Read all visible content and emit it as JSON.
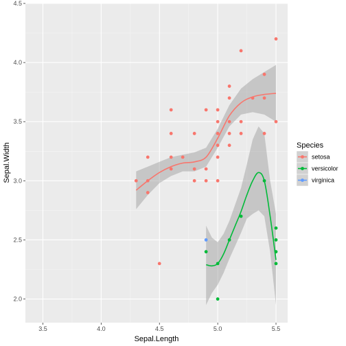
{
  "chart_data": {
    "type": "scatter",
    "xlabel": "Sepal.Length",
    "ylabel": "Sepal.Width",
    "xlim": [
      3.35,
      5.6
    ],
    "ylim": [
      1.8,
      4.5
    ],
    "x_ticks": [
      3.5,
      4.0,
      4.5,
      5.0,
      5.5
    ],
    "x_tick_labels": [
      "3.5",
      "4.0",
      "4.5",
      "5.0",
      "5.5"
    ],
    "y_ticks": [
      2.0,
      2.5,
      3.0,
      3.5,
      4.0,
      4.5
    ],
    "y_tick_labels": [
      "2.0",
      "2.5",
      "3.0",
      "3.5",
      "4.0",
      "4.5"
    ],
    "grid": true,
    "legend": {
      "title": "Species",
      "position": "right",
      "entries": [
        "setosa",
        "versicolor",
        "virginica"
      ]
    },
    "series": [
      {
        "name": "setosa",
        "color": "#F8766D",
        "points": [
          [
            4.3,
            3.0
          ],
          [
            4.4,
            2.9
          ],
          [
            4.4,
            3.0
          ],
          [
            4.4,
            3.2
          ],
          [
            4.5,
            2.3
          ],
          [
            4.6,
            3.1
          ],
          [
            4.6,
            3.2
          ],
          [
            4.6,
            3.4
          ],
          [
            4.6,
            3.6
          ],
          [
            4.7,
            3.2
          ],
          [
            4.8,
            3.0
          ],
          [
            4.8,
            3.1
          ],
          [
            4.8,
            3.4
          ],
          [
            4.9,
            3.0
          ],
          [
            4.9,
            3.1
          ],
          [
            4.9,
            3.6
          ],
          [
            5.0,
            3.0
          ],
          [
            5.0,
            3.2
          ],
          [
            5.0,
            3.3
          ],
          [
            5.0,
            3.4
          ],
          [
            5.0,
            3.5
          ],
          [
            5.0,
            3.6
          ],
          [
            5.1,
            3.3
          ],
          [
            5.1,
            3.4
          ],
          [
            5.1,
            3.5
          ],
          [
            5.1,
            3.7
          ],
          [
            5.1,
            3.8
          ],
          [
            5.2,
            3.4
          ],
          [
            5.2,
            3.5
          ],
          [
            5.2,
            4.1
          ],
          [
            5.3,
            3.7
          ],
          [
            5.4,
            3.4
          ],
          [
            5.4,
            3.7
          ],
          [
            5.4,
            3.9
          ],
          [
            5.5,
            3.5
          ],
          [
            5.5,
            4.2
          ]
        ],
        "smooth": [
          [
            4.3,
            2.92
          ],
          [
            4.4,
            3.0
          ],
          [
            4.5,
            3.07
          ],
          [
            4.6,
            3.12
          ],
          [
            4.7,
            3.15
          ],
          [
            4.8,
            3.16
          ],
          [
            4.9,
            3.2
          ],
          [
            5.0,
            3.36
          ],
          [
            5.1,
            3.55
          ],
          [
            5.2,
            3.66
          ],
          [
            5.3,
            3.71
          ],
          [
            5.4,
            3.73
          ],
          [
            5.5,
            3.74
          ]
        ],
        "band": [
          [
            4.3,
            2.76,
            3.08
          ],
          [
            4.4,
            2.88,
            3.12
          ],
          [
            4.5,
            2.98,
            3.16
          ],
          [
            4.6,
            3.04,
            3.2
          ],
          [
            4.7,
            3.08,
            3.22
          ],
          [
            4.8,
            3.08,
            3.24
          ],
          [
            4.9,
            3.12,
            3.28
          ],
          [
            5.0,
            3.28,
            3.44
          ],
          [
            5.1,
            3.46,
            3.64
          ],
          [
            5.2,
            3.56,
            3.78
          ],
          [
            5.3,
            3.58,
            3.86
          ],
          [
            5.4,
            3.56,
            3.92
          ],
          [
            5.5,
            3.5,
            3.98
          ]
        ]
      },
      {
        "name": "versicolor",
        "color": "#00BA38",
        "points": [
          [
            4.9,
            2.4
          ],
          [
            5.0,
            2.0
          ],
          [
            5.0,
            2.3
          ],
          [
            5.1,
            2.5
          ],
          [
            5.2,
            2.7
          ],
          [
            5.4,
            3.0
          ],
          [
            5.5,
            2.3
          ],
          [
            5.5,
            2.4
          ],
          [
            5.5,
            2.5
          ],
          [
            5.5,
            2.6
          ]
        ],
        "smooth": [
          [
            4.9,
            2.29
          ],
          [
            4.95,
            2.28
          ],
          [
            5.0,
            2.3
          ],
          [
            5.05,
            2.38
          ],
          [
            5.1,
            2.5
          ],
          [
            5.15,
            2.62
          ],
          [
            5.2,
            2.74
          ],
          [
            5.25,
            2.88
          ],
          [
            5.3,
            3.0
          ],
          [
            5.35,
            3.07
          ],
          [
            5.4,
            3.0
          ],
          [
            5.45,
            2.7
          ],
          [
            5.5,
            2.33
          ]
        ],
        "band": [
          [
            4.9,
            1.95,
            2.62
          ],
          [
            4.95,
            2.05,
            2.52
          ],
          [
            5.0,
            2.12,
            2.48
          ],
          [
            5.05,
            2.22,
            2.55
          ],
          [
            5.1,
            2.34,
            2.66
          ],
          [
            5.15,
            2.45,
            2.8
          ],
          [
            5.2,
            2.56,
            2.94
          ],
          [
            5.25,
            2.68,
            3.14
          ],
          [
            5.3,
            2.72,
            3.35
          ],
          [
            5.35,
            2.75,
            3.46
          ],
          [
            5.4,
            2.7,
            3.4
          ],
          [
            5.45,
            2.4,
            3.0
          ],
          [
            5.5,
            1.95,
            2.72
          ]
        ]
      },
      {
        "name": "virginica",
        "color": "#619CFF",
        "points": [
          [
            4.9,
            2.5
          ]
        ],
        "smooth": [],
        "band": []
      }
    ]
  }
}
